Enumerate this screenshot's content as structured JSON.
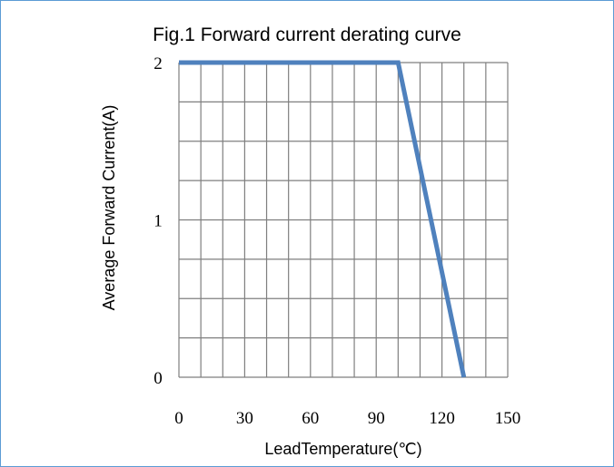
{
  "chart_data": {
    "type": "line",
    "title": "Fig.1 Forward current derating curve",
    "xlabel": "LeadTemperature(℃)",
    "ylabel": "Average Forward Current(A)",
    "xlim": [
      0,
      150
    ],
    "ylim": [
      0,
      2
    ],
    "xticks": [
      0,
      30,
      60,
      90,
      120,
      150
    ],
    "yticks": [
      0,
      1,
      2
    ],
    "grid": true,
    "series": [
      {
        "x": [
          0,
          100,
          130
        ],
        "y": [
          2,
          2,
          0
        ],
        "color": "#4f81bd"
      }
    ]
  }
}
